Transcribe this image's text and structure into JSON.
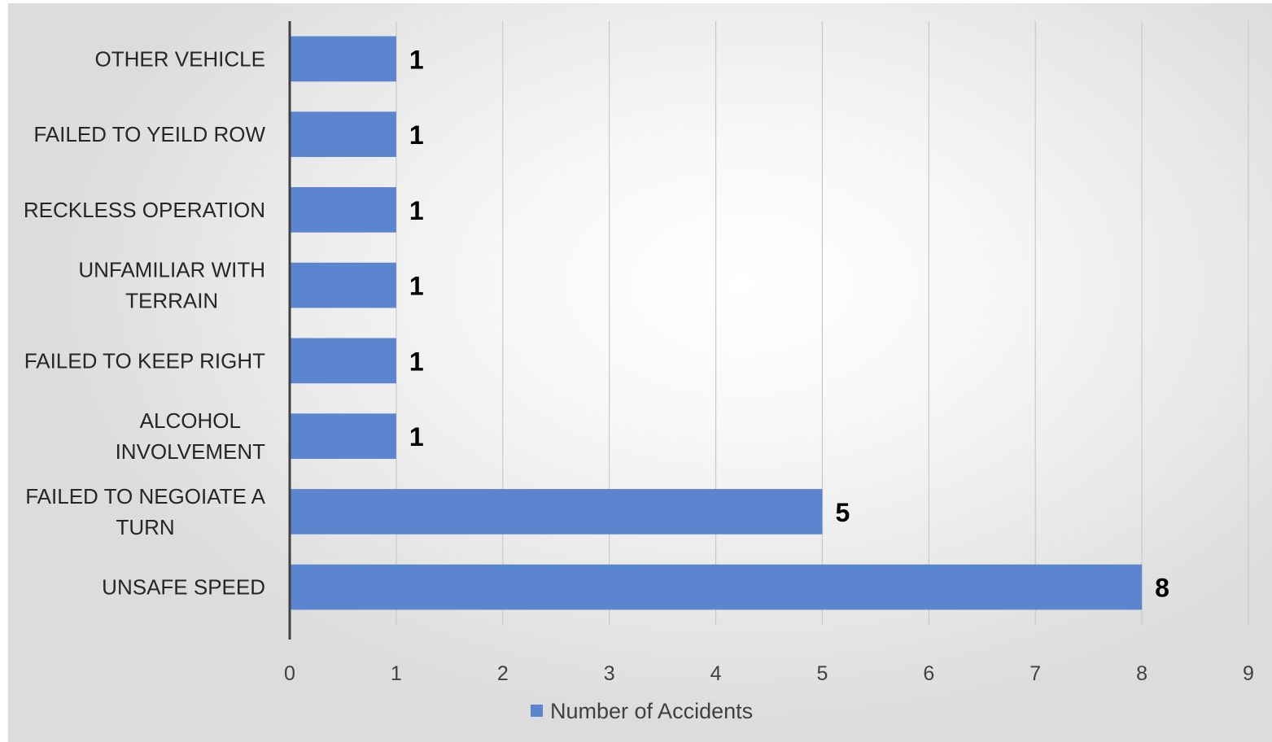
{
  "chart_data": {
    "type": "bar",
    "orientation": "horizontal",
    "categories": [
      "OTHER VEHICLE",
      "FAILED TO YEILD ROW",
      "RECKLESS OPERATION",
      "UNFAMILIAR WITH TERRAIN",
      "FAILED TO KEEP RIGHT",
      "ALCOHOL INVOLVEMENT",
      "FAILED TO NEGOIATE A TURN",
      "UNSAFE SPEED"
    ],
    "category_label_lines": [
      [
        "OTHER VEHICLE"
      ],
      [
        "FAILED TO YEILD ROW"
      ],
      [
        "RECKLESS OPERATION"
      ],
      [
        "UNFAMILIAR WITH",
        "TERRAIN"
      ],
      [
        "FAILED TO KEEP RIGHT"
      ],
      [
        "ALCOHOL",
        "INVOLVEMENT"
      ],
      [
        "FAILED TO NEGOIATE A",
        "TURN"
      ],
      [
        "UNSAFE SPEED"
      ]
    ],
    "series": [
      {
        "name": "Number of Accidents",
        "values": [
          1,
          1,
          1,
          1,
          1,
          1,
          5,
          8
        ],
        "color": "#5b86cf"
      }
    ],
    "title": "",
    "xlabel": "",
    "ylabel": "",
    "xlim": [
      0,
      9
    ],
    "x_ticks": [
      0,
      1,
      2,
      3,
      4,
      5,
      6,
      7,
      8,
      9
    ],
    "grid": true,
    "data_labels": true,
    "legend": "bottom"
  }
}
